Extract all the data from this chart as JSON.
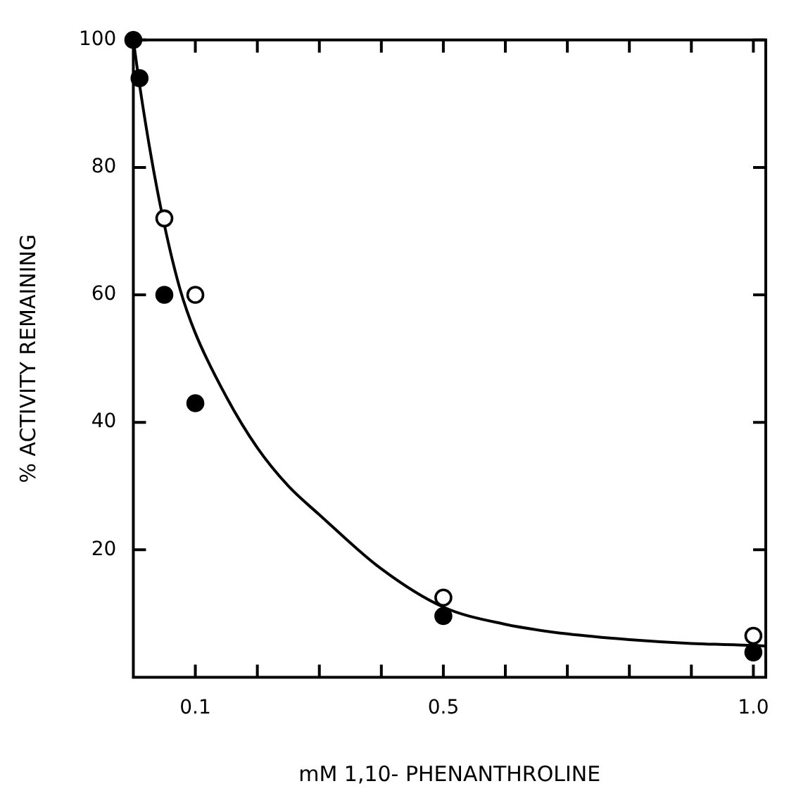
{
  "chart_data": {
    "type": "scatter",
    "xlabel": "mM 1,10- PHENANTHROLINE",
    "ylabel": "% ACTIVITY REMAINING",
    "xlim": [
      0,
      1.02
    ],
    "ylim": [
      0,
      100
    ],
    "xticks": [
      {
        "value": 0.1,
        "label": "0.1"
      },
      {
        "value": 0.2,
        "label": null
      },
      {
        "value": 0.3,
        "label": null
      },
      {
        "value": 0.4,
        "label": null
      },
      {
        "value": 0.5,
        "label": "0.5"
      },
      {
        "value": 0.6,
        "label": null
      },
      {
        "value": 0.7,
        "label": null
      },
      {
        "value": 0.8,
        "label": null
      },
      {
        "value": 0.9,
        "label": null
      },
      {
        "value": 1,
        "label": "1.0"
      }
    ],
    "yticks": [
      20,
      40,
      60,
      80,
      100
    ],
    "grid": false,
    "legend": false,
    "marker": "circle",
    "series": [
      {
        "type": "scatter",
        "color": "#000000",
        "x": [
          0,
          0.01,
          0.05,
          0.1,
          0.5,
          1.0
        ],
        "values": [
          100,
          94,
          60,
          43,
          9.6,
          3.9
        ]
      },
      {
        "type": "scatter",
        "color": "#000000",
        "x": [
          0.05,
          0.1,
          0.5,
          1.0
        ],
        "values": [
          72,
          60,
          12.5,
          6.5
        ]
      },
      {
        "type": "line",
        "color": "#000000",
        "marker": "none",
        "x": [
          0,
          0.01,
          0.03,
          0.05,
          0.075,
          0.1,
          0.15,
          0.2,
          0.25,
          0.3,
          0.4,
          0.5,
          0.6,
          0.7,
          0.8,
          0.9,
          1.0,
          1.02
        ],
        "values": [
          100,
          93,
          81,
          71,
          61,
          54,
          44,
          36,
          30,
          25.5,
          17,
          11,
          8.3,
          6.8,
          5.9,
          5.3,
          5,
          4.9
        ]
      }
    ]
  }
}
